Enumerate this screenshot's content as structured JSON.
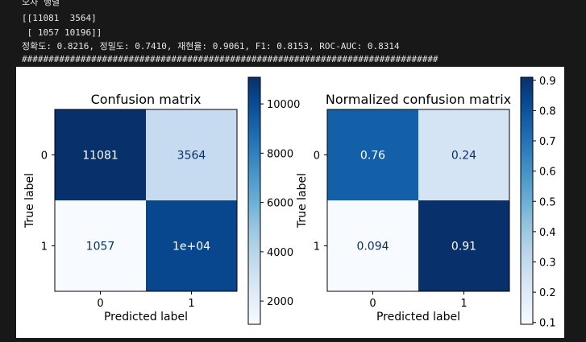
{
  "console": {
    "header": "오차 행렬",
    "matrix_row1": "[[11081  3564]",
    "matrix_row2": " [ 1057 10196]]",
    "metrics": "정확도: 0.8216, 정밀도: 0.7410, 재현율: 0.9061, F1: 0.8153, ROC-AUC: 0.8314",
    "separator": "##############################################################################"
  },
  "chart_data": [
    {
      "type": "heatmap",
      "title": "Confusion matrix",
      "xlabel": "Predicted label",
      "ylabel": "True label",
      "x_ticks": [
        "0",
        "1"
      ],
      "y_ticks": [
        "0",
        "1"
      ],
      "values": [
        [
          11081,
          3564
        ],
        [
          1057,
          10196
        ]
      ],
      "cell_labels": [
        [
          "11081",
          "3564"
        ],
        [
          "1057",
          "1e+04"
        ]
      ],
      "colormap": "Blues",
      "colorbar": {
        "min": 1057,
        "max": 11081,
        "ticks": [
          2000,
          4000,
          6000,
          8000,
          10000
        ],
        "tick_labels": [
          "2000",
          "4000",
          "6000",
          "8000",
          "10000"
        ]
      }
    },
    {
      "type": "heatmap",
      "title": "Normalized confusion matrix",
      "xlabel": "Predicted label",
      "ylabel": "True label",
      "x_ticks": [
        "0",
        "1"
      ],
      "y_ticks": [
        "0",
        "1"
      ],
      "values": [
        [
          0.76,
          0.24
        ],
        [
          0.094,
          0.91
        ]
      ],
      "cell_labels": [
        [
          "0.76",
          "0.24"
        ],
        [
          "0.094",
          "0.91"
        ]
      ],
      "colormap": "Blues",
      "colorbar": {
        "min": 0.094,
        "max": 0.91,
        "ticks": [
          0.1,
          0.2,
          0.3,
          0.4,
          0.5,
          0.6,
          0.7,
          0.8,
          0.9
        ],
        "tick_labels": [
          "0.1",
          "0.2",
          "0.3",
          "0.4",
          "0.5",
          "0.6",
          "0.7",
          "0.8",
          "0.9"
        ]
      }
    }
  ]
}
